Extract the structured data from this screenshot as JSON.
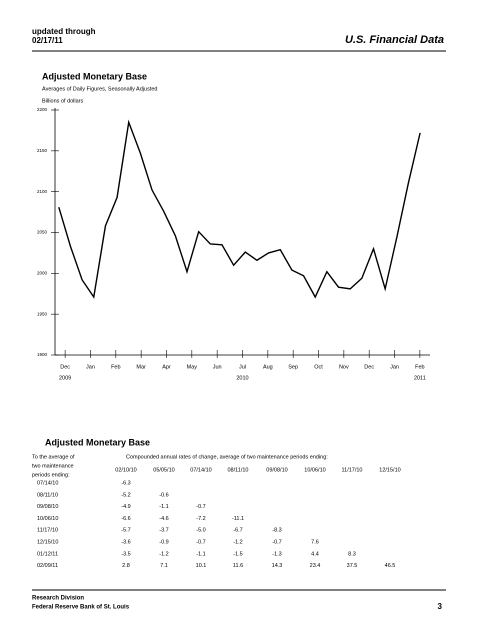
{
  "header": {
    "updated_lines": [
      "updated through",
      "02/17/11"
    ],
    "title": "U.S. Financial Data"
  },
  "chart_data": {
    "type": "line",
    "title": "Adjusted Monetary Base",
    "subtitle": "Averages of Daily Figures, Seasonally Adjusted",
    "y_label": "Billions of dollars",
    "x": [
      -0.25,
      0.21,
      0.67,
      1.13,
      1.59,
      2.05,
      2.51,
      2.97,
      3.43,
      3.89,
      4.35,
      4.81,
      5.27,
      5.73,
      6.19,
      6.65,
      7.11,
      7.57,
      8.03,
      8.49,
      8.95,
      9.41,
      9.87,
      10.33,
      10.79,
      11.25,
      11.71,
      12.17,
      12.63,
      13.09,
      13.55,
      14.01
    ],
    "series": [
      {
        "color": "#000000",
        "values": [
          2081,
          2033,
          1992,
          1971,
          2058,
          2093,
          2185,
          2147,
          2102,
          2076,
          2046,
          2002,
          2051,
          2036,
          2035,
          2010,
          2026,
          2016,
          2025,
          2029,
          2004,
          1997,
          1971,
          2002,
          1983,
          1981,
          1994,
          2030,
          1981,
          2044,
          2111,
          2172
        ]
      }
    ],
    "xlim": [
      -0.4,
      14.4
    ],
    "xticks": [
      {
        "value": 0,
        "label": "Dec"
      },
      {
        "value": 1,
        "label": "Jan"
      },
      {
        "value": 2,
        "label": "Feb"
      },
      {
        "value": 3,
        "label": "Mar"
      },
      {
        "value": 4,
        "label": "Apr"
      },
      {
        "value": 5,
        "label": "May"
      },
      {
        "value": 6,
        "label": "Jun"
      },
      {
        "value": 7,
        "label": "Jul"
      },
      {
        "value": 8,
        "label": "Aug"
      },
      {
        "value": 9,
        "label": "Sep"
      },
      {
        "value": 10,
        "label": "Oct"
      },
      {
        "value": 11,
        "label": "Nov"
      },
      {
        "value": 12,
        "label": "Dec"
      },
      {
        "value": 13,
        "label": "Jan"
      },
      {
        "value": 14,
        "label": "Feb"
      }
    ],
    "year_labels": [
      {
        "value": 0,
        "label": "2009"
      },
      {
        "value": 7,
        "label": "2010"
      },
      {
        "value": 14,
        "label": "2011"
      }
    ],
    "ylim": [
      1900,
      2200
    ],
    "yticks": [
      1900,
      1950,
      2000,
      2050,
      2100,
      2150,
      2200
    ]
  },
  "table": {
    "title": "Adjusted Monetary Base",
    "stub_header": [
      "To the average of",
      "two maintenance",
      "periods ending:"
    ],
    "caption": "Compounded annual rates of change, average of two maintenance periods ending:",
    "columns": [
      "02/10/10",
      "05/05/10",
      "07/14/10",
      "08/11/10",
      "09/08/10",
      "10/06/10",
      "11/17/10",
      "12/15/10"
    ],
    "rows": [
      [
        "07/14/10",
        "-6.3"
      ],
      [
        "08/11/10",
        "-5.2",
        "-0.6"
      ],
      [
        "09/08/10",
        "-4.9",
        "-1.1",
        "-0.7"
      ],
      [
        "10/06/10",
        "-6.6",
        "-4.6",
        "-7.2",
        "-11.1"
      ],
      [
        "11/17/10",
        "-5.7",
        "-3.7",
        "-5.0",
        "-6.7",
        "-8.3"
      ],
      [
        "12/15/10",
        "-3.6",
        "-0.9",
        "-0.7",
        "-1.2",
        "-0.7",
        "7.6"
      ],
      [
        "01/12/11",
        "-3.5",
        "-1.2",
        "-1.1",
        "-1.5",
        "-1.3",
        "4.4",
        "8.3"
      ],
      [
        "02/09/11",
        "2.8",
        "7.1",
        "10.1",
        "11.6",
        "14.3",
        "23.4",
        "37.5",
        "46.5"
      ]
    ]
  },
  "footer": {
    "lines": [
      "Research Division",
      "Federal Reserve Bank of St. Louis"
    ],
    "page": "3"
  }
}
